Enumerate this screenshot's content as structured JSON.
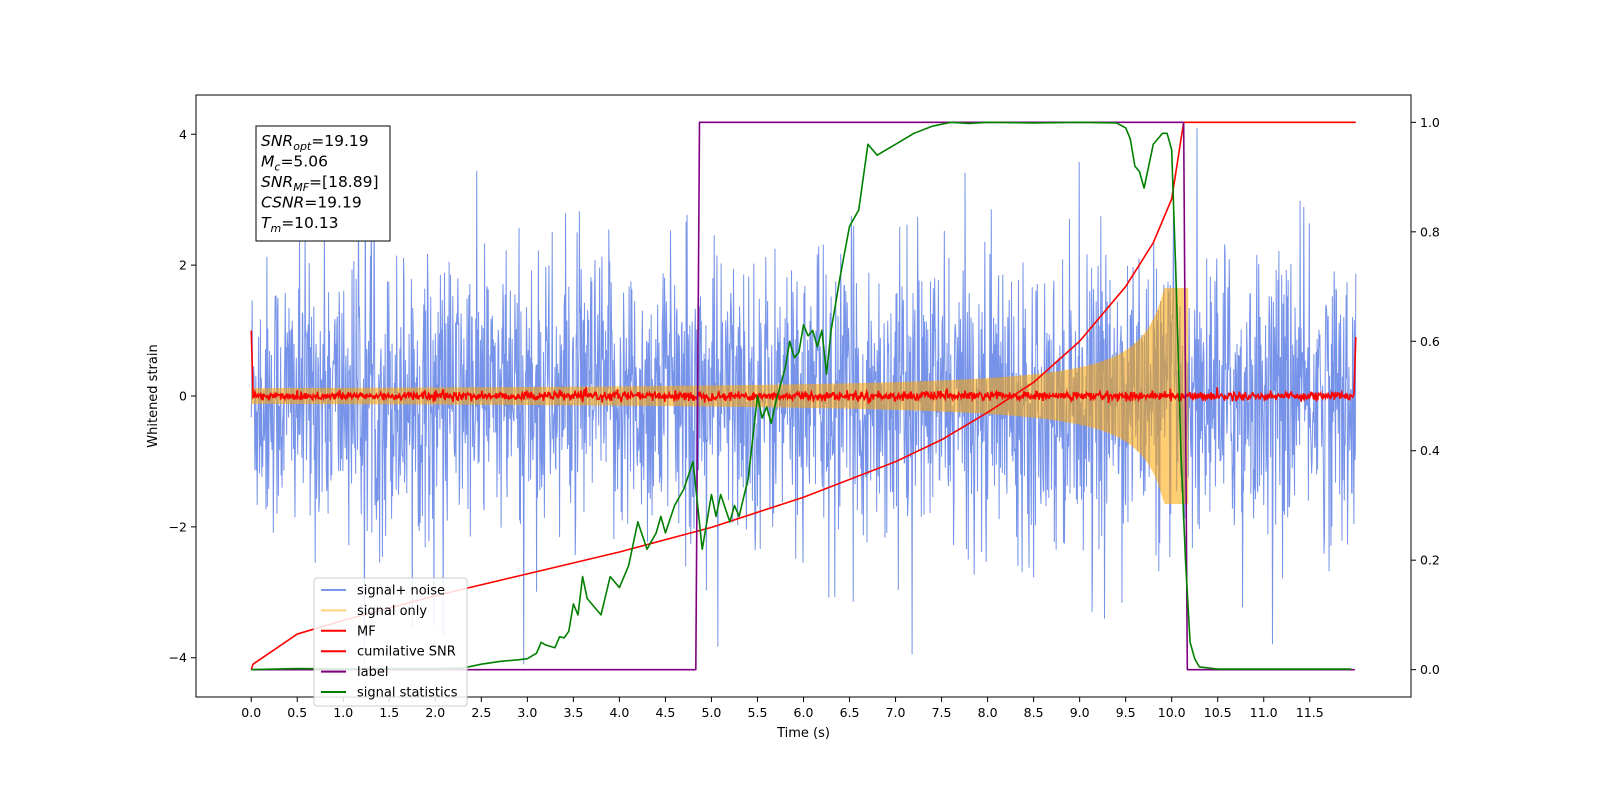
{
  "chart_data": {
    "type": "line",
    "xlabel": "Time (s)",
    "ylabel_left": "Whitened strain",
    "xlim": [
      -0.6,
      12.6
    ],
    "ylim_left": [
      -4.6,
      4.6
    ],
    "ylim_right": [
      -0.05,
      1.05
    ],
    "x_ticks": [
      0.0,
      0.5,
      1.0,
      1.5,
      2.0,
      2.5,
      3.0,
      3.5,
      4.0,
      4.5,
      5.0,
      5.5,
      6.0,
      6.5,
      7.0,
      7.5,
      8.0,
      8.5,
      9.0,
      9.5,
      10.0,
      10.5,
      11.0,
      11.5
    ],
    "x_tick_labels": [
      "0.0",
      "0.5",
      "1.0",
      "1.5",
      "2.0",
      "2.5",
      "3.0",
      "3.5",
      "4.0",
      "4.5",
      "5.0",
      "5.5",
      "6.0",
      "6.5",
      "7.0",
      "7.5",
      "8.0",
      "8.5",
      "9.0",
      "9.5",
      "10.0",
      "10.5",
      "11.0",
      "11.5"
    ],
    "y_left_ticks": [
      4,
      2,
      0,
      -2,
      -4
    ],
    "y_left_tick_labels": [
      "4",
      "2",
      "0",
      "−2",
      "−4"
    ],
    "y_right_ticks": [
      1.0,
      0.8,
      0.6,
      0.4,
      0.2,
      0.0
    ],
    "y_right_tick_labels": [
      "1.0",
      "0.8",
      "0.6",
      "0.4",
      "0.2",
      "0.0"
    ],
    "grid": false,
    "legend_placement": "lower-left",
    "info_box": {
      "lines": [
        {
          "main": "SNR",
          "sub": "opt",
          "value": "=19.19"
        },
        {
          "main": "M",
          "sub": "c",
          "value": "=5.06"
        },
        {
          "main": "SNR",
          "sub": "MF",
          "value": "=[18.89]"
        },
        {
          "main": "CSNR",
          "sub": "",
          "value": "=19.19"
        },
        {
          "main": "T",
          "sub": "m",
          "value": "=10.13"
        }
      ]
    },
    "series": [
      {
        "name": "signal+ noise",
        "color": "#4169E1",
        "axis": "left",
        "description_values": {
          "t_start": 0.0,
          "t_end": 12.0,
          "amplitude_range": [
            -4.1,
            4.1
          ]
        }
      },
      {
        "name": "signal only",
        "color": "#FFA500",
        "axis": "left",
        "chirp": {
          "t_start": 0.0,
          "t_merge": 10.13,
          "amplitude_start": 0.12,
          "amplitude_peak": 1.65
        }
      },
      {
        "name": "MF",
        "color": "#FF0000",
        "axis": "left",
        "level": 0.0,
        "noise": 0.1,
        "edges": {
          "start": 1.0,
          "end": 0.9
        }
      },
      {
        "name": "cumilative SNR",
        "color": "#FF0000",
        "axis": "right",
        "x": [
          0.0,
          0.02,
          0.5,
          1.0,
          2.0,
          3.0,
          4.0,
          5.0,
          6.0,
          7.0,
          7.5,
          8.0,
          8.5,
          9.0,
          9.5,
          9.8,
          10.0,
          10.13,
          12.0
        ],
        "y": [
          0.0,
          0.01,
          0.065,
          0.09,
          0.135,
          0.175,
          0.215,
          0.26,
          0.315,
          0.38,
          0.42,
          0.47,
          0.525,
          0.6,
          0.7,
          0.78,
          0.86,
          1.0,
          1.0
        ]
      },
      {
        "name": "label",
        "color": "#800080",
        "axis": "right",
        "x": [
          0.0,
          4.83,
          4.87,
          10.13,
          10.17,
          11.99
        ],
        "y": [
          0.0,
          0.0,
          1.0,
          1.0,
          0.0,
          0.0
        ]
      },
      {
        "name": "signal statistics",
        "color": "#008000",
        "axis": "right",
        "x": [
          0.0,
          0.5,
          1.0,
          1.5,
          2.0,
          2.3,
          2.5,
          2.7,
          2.9,
          3.0,
          3.1,
          3.15,
          3.2,
          3.3,
          3.35,
          3.4,
          3.45,
          3.5,
          3.55,
          3.6,
          3.65,
          3.7,
          3.8,
          3.9,
          4.0,
          4.1,
          4.2,
          4.3,
          4.4,
          4.45,
          4.5,
          4.6,
          4.7,
          4.8,
          4.9,
          5.0,
          5.05,
          5.1,
          5.2,
          5.25,
          5.3,
          5.4,
          5.5,
          5.55,
          5.6,
          5.65,
          5.7,
          5.75,
          5.8,
          5.85,
          5.9,
          5.95,
          6.0,
          6.05,
          6.1,
          6.15,
          6.2,
          6.25,
          6.3,
          6.4,
          6.5,
          6.6,
          6.7,
          6.8,
          6.9,
          7.0,
          7.2,
          7.4,
          7.6,
          7.8,
          8.0,
          8.5,
          9.0,
          9.4,
          9.5,
          9.55,
          9.6,
          9.65,
          9.7,
          9.75,
          9.8,
          9.85,
          9.9,
          9.95,
          10.0,
          10.05,
          10.1,
          10.15,
          10.2,
          10.25,
          10.3,
          10.5,
          11.0,
          11.5,
          11.95
        ],
        "y": [
          0.0,
          0.002,
          0.001,
          0.002,
          0.002,
          0.003,
          0.01,
          0.015,
          0.018,
          0.02,
          0.03,
          0.05,
          0.045,
          0.04,
          0.06,
          0.058,
          0.07,
          0.12,
          0.1,
          0.17,
          0.13,
          0.12,
          0.1,
          0.17,
          0.15,
          0.19,
          0.27,
          0.22,
          0.25,
          0.28,
          0.25,
          0.3,
          0.33,
          0.38,
          0.22,
          0.32,
          0.28,
          0.32,
          0.27,
          0.3,
          0.28,
          0.35,
          0.5,
          0.46,
          0.48,
          0.45,
          0.49,
          0.52,
          0.55,
          0.6,
          0.57,
          0.58,
          0.63,
          0.61,
          0.62,
          0.59,
          0.62,
          0.54,
          0.62,
          0.72,
          0.81,
          0.84,
          0.96,
          0.94,
          0.95,
          0.96,
          0.98,
          0.993,
          1.0,
          0.998,
          1.0,
          0.999,
          1.0,
          0.999,
          0.99,
          0.97,
          0.92,
          0.91,
          0.88,
          0.92,
          0.96,
          0.97,
          0.98,
          0.98,
          0.95,
          0.7,
          0.4,
          0.2,
          0.05,
          0.02,
          0.005,
          0.001,
          0.001,
          0.001,
          0.001
        ]
      }
    ]
  }
}
